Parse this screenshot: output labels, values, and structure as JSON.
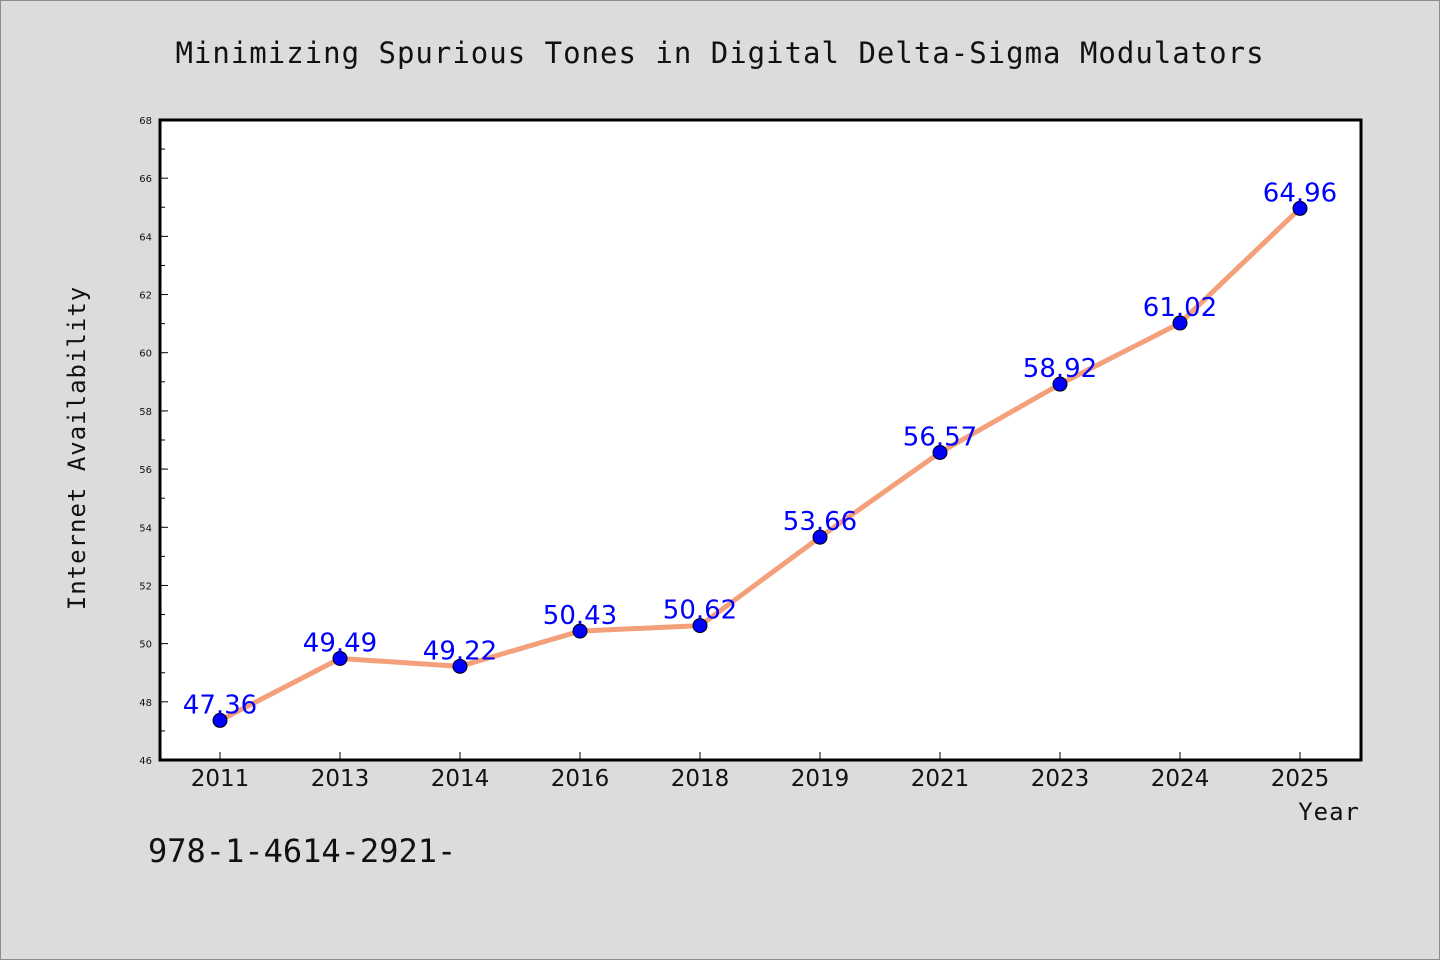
{
  "footnote": "978-1-4614-2921-",
  "chart_data": {
    "type": "line",
    "title": "Minimizing Spurious Tones in Digital Delta-Sigma Modulators",
    "xlabel": "Year",
    "ylabel": "Internet Availability",
    "categories": [
      "2011",
      "2013",
      "2014",
      "2016",
      "2018",
      "2019",
      "2021",
      "2023",
      "2024",
      "2025"
    ],
    "values": [
      47.36,
      49.49,
      49.22,
      50.43,
      50.62,
      53.66,
      56.57,
      58.92,
      61.02,
      64.96
    ],
    "data_labels": [
      "47.36",
      "49.49",
      "49.22",
      "50.43",
      "50.62",
      "53.66",
      "56.57",
      "58.92",
      "61.02",
      "64.96"
    ],
    "ylim": [
      46,
      68
    ],
    "yticks": [
      46,
      48,
      50,
      52,
      54,
      56,
      58,
      60,
      62,
      64,
      66,
      68
    ],
    "grid": false,
    "colors": {
      "line": "#f4a07a",
      "marker": "#0000ff",
      "data_label": "#0000ff",
      "plot_background": "#ffffff",
      "figure_background": "#dcdcdc"
    }
  }
}
